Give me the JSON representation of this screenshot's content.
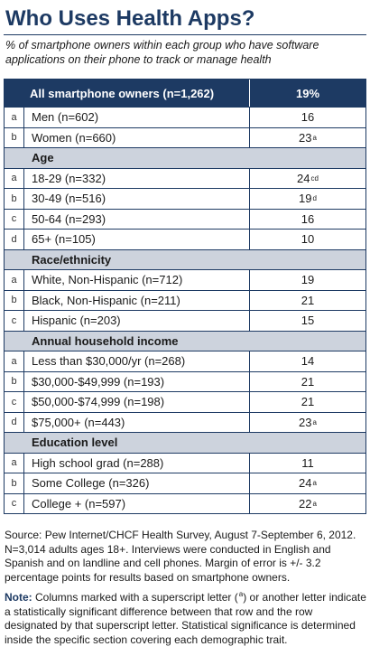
{
  "title": "Who Uses Health Apps?",
  "subtitle": "% of smartphone owners within each group who have software applications on their phone to track or manage health",
  "total": {
    "label": "All smartphone owners (n=1,262)",
    "value": "19%"
  },
  "rows": [
    {
      "type": "data",
      "letter": "a",
      "label": "Men (n=602)",
      "value": "16",
      "sup": ""
    },
    {
      "type": "data",
      "letter": "b",
      "label": "Women (n=660)",
      "value": "23",
      "sup": "a"
    },
    {
      "type": "section",
      "label": "Age"
    },
    {
      "type": "data",
      "letter": "a",
      "label": "18-29 (n=332)",
      "value": "24",
      "sup": "cd"
    },
    {
      "type": "data",
      "letter": "b",
      "label": "30-49 (n=516)",
      "value": "19",
      "sup": "d"
    },
    {
      "type": "data",
      "letter": "c",
      "label": "50-64 (n=293)",
      "value": "16",
      "sup": ""
    },
    {
      "type": "data",
      "letter": "d",
      "label": "65+ (n=105)",
      "value": "10",
      "sup": ""
    },
    {
      "type": "section",
      "label": "Race/ethnicity"
    },
    {
      "type": "data",
      "letter": "a",
      "label": "White, Non-Hispanic (n=712)",
      "value": "19",
      "sup": ""
    },
    {
      "type": "data",
      "letter": "b",
      "label": "Black, Non-Hispanic (n=211)",
      "value": "21",
      "sup": ""
    },
    {
      "type": "data",
      "letter": "c",
      "label": "Hispanic (n=203)",
      "value": "15",
      "sup": ""
    },
    {
      "type": "section",
      "label": "Annual household income"
    },
    {
      "type": "data",
      "letter": "a",
      "label": "Less than $30,000/yr (n=268)",
      "value": "14",
      "sup": ""
    },
    {
      "type": "data",
      "letter": "b",
      "label": "$30,000-$49,999 (n=193)",
      "value": "21",
      "sup": ""
    },
    {
      "type": "data",
      "letter": "c",
      "label": "$50,000-$74,999 (n=198)",
      "value": "21",
      "sup": ""
    },
    {
      "type": "data",
      "letter": "d",
      "label": "$75,000+ (n=443)",
      "value": "23",
      "sup": "a"
    },
    {
      "type": "section",
      "label": "Education level"
    },
    {
      "type": "data",
      "letter": "a",
      "label": "High school grad (n=288)",
      "value": "11",
      "sup": ""
    },
    {
      "type": "data",
      "letter": "b",
      "label": "Some College (n=326)",
      "value": "24",
      "sup": "a"
    },
    {
      "type": "data",
      "letter": "c",
      "label": "College + (n=597)",
      "value": "22",
      "sup": "a"
    }
  ],
  "source": "Source: Pew Internet/CHCF Health Survey, August 7-September 6, 2012. N=3,014 adults ages 18+. Interviews were conducted in English and Spanish and on landline and cell phones.  Margin of error is +/- 3.2 percentage points for results based on smartphone owners.",
  "note_label": "Note:",
  "note_text_before": " Columns marked with a superscript letter (",
  "note_sup": "a",
  "note_text_after": ") or another letter indicate a statistically significant difference between that row and the row designated by that superscript letter. Statistical significance is determined inside the specific section covering each demographic trait.",
  "colors": {
    "navy": "#1d3a63",
    "section_bg": "#cdd3dd"
  }
}
